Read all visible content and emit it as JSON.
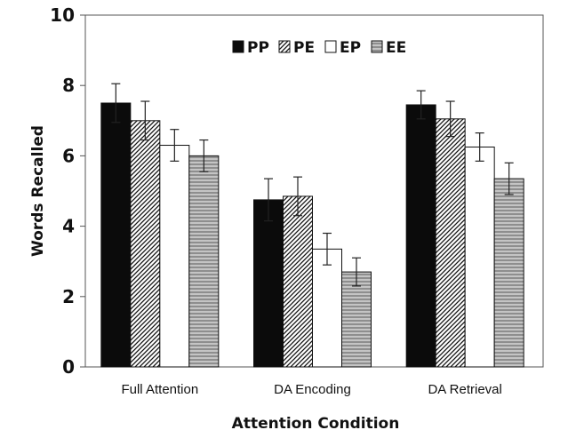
{
  "chart_data": {
    "type": "bar",
    "xlabel": "Attention Condition",
    "ylabel": "Words Recalled",
    "ylim": [
      0,
      10
    ],
    "yticks": [
      "0",
      "2",
      "4",
      "6",
      "8",
      "10"
    ],
    "grid": false,
    "legend_position": "top",
    "categories": [
      "Full Attention",
      "DA Encoding",
      "DA Retrieval"
    ],
    "series": [
      {
        "name": "PP",
        "pattern": "solid-black",
        "values": [
          7.5,
          4.75,
          7.45
        ],
        "errors": [
          0.55,
          0.6,
          0.4
        ]
      },
      {
        "name": "PE",
        "pattern": "diagonal-hatch",
        "values": [
          7.0,
          4.85,
          7.05
        ],
        "errors": [
          0.55,
          0.55,
          0.5
        ]
      },
      {
        "name": "EP",
        "pattern": "white",
        "values": [
          6.3,
          3.35,
          6.25
        ],
        "errors": [
          0.45,
          0.45,
          0.4
        ]
      },
      {
        "name": "EE",
        "pattern": "horizontal-stripes",
        "values": [
          6.0,
          2.7,
          5.35
        ],
        "errors": [
          0.45,
          0.4,
          0.45
        ]
      }
    ]
  }
}
